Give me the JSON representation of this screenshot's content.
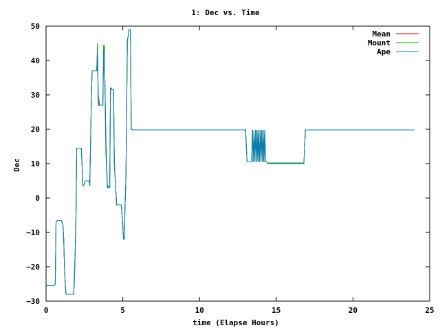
{
  "chart_data": {
    "type": "line",
    "title": "1: Dec vs. Time",
    "xlabel": "time (Elapse Hours)",
    "ylabel": "Dec",
    "xlim": [
      0,
      25
    ],
    "ylim": [
      -30,
      50
    ],
    "xticks": [
      0,
      5,
      10,
      15,
      20,
      25
    ],
    "yticks": [
      -30,
      -20,
      -10,
      0,
      10,
      20,
      30,
      40,
      50
    ],
    "grid": false,
    "legend_position": "top-right",
    "series": [
      {
        "name": "Mean",
        "color": "#cc0000",
        "x": [
          0,
          0.5,
          0.6,
          0.65,
          0.75,
          1.0,
          1.1,
          1.15,
          1.2,
          1.25,
          1.3,
          1.35,
          1.45,
          1.8,
          1.85,
          1.9,
          1.95,
          2.0,
          2.05,
          2.1,
          2.3,
          2.35,
          2.4,
          2.5,
          2.55,
          2.8,
          2.85,
          2.95,
          3.0,
          3.05,
          3.1,
          3.15,
          3.3,
          3.35,
          3.4,
          3.5,
          3.55,
          3.7,
          3.75,
          3.8,
          3.85,
          3.9,
          4.0,
          4.05,
          4.1,
          4.15,
          4.2,
          4.25,
          4.3,
          4.35,
          4.4,
          4.45,
          4.6,
          4.65,
          4.7,
          4.9,
          5.0,
          5.05,
          5.1,
          5.15,
          5.2,
          5.3,
          5.35,
          5.4,
          5.5,
          5.55,
          5.65,
          5.8,
          13.0,
          13.05,
          13.1,
          13.15,
          13.4,
          13.45,
          13.5,
          13.55,
          13.6,
          13.65,
          13.7,
          13.75,
          13.8,
          13.85,
          13.9,
          13.95,
          14.0,
          14.05,
          14.1,
          14.15,
          14.2,
          14.25,
          14.3,
          14.4,
          14.45,
          14.5,
          14.6,
          16.8,
          16.85,
          16.9,
          17.0,
          24.0
        ],
        "y": [
          -25.5,
          -25.5,
          -25,
          -7,
          -6.5,
          -6.5,
          -8,
          -12,
          -20,
          -25,
          -28,
          -28,
          -28,
          -28,
          -22,
          -15,
          -5,
          14.5,
          14.5,
          14.5,
          14.5,
          9,
          3.5,
          4,
          5,
          5,
          3.5,
          28,
          37,
          37,
          37,
          37,
          37,
          44,
          27,
          27,
          27,
          27,
          43,
          44,
          30,
          15,
          3,
          3,
          3,
          3,
          32,
          32,
          31.5,
          31.5,
          31.5,
          10,
          -2,
          -2,
          -2,
          -2,
          -8,
          -12,
          -12,
          -2,
          5,
          46,
          47,
          49,
          49,
          20,
          19.8,
          19.8,
          19.8,
          15,
          10.5,
          10.5,
          10.5,
          19.8,
          10.5,
          19.5,
          10.5,
          19.8,
          10.5,
          19.8,
          10.5,
          19.8,
          10.5,
          19.8,
          10.5,
          19.8,
          10.5,
          19.8,
          10.5,
          19.8,
          10.5,
          10.5,
          10.2,
          10.2,
          10.2,
          10.2,
          15,
          19.8,
          19.8,
          19.8
        ]
      },
      {
        "name": "Mount",
        "color": "#00a000",
        "x": [
          0,
          0.5,
          0.6,
          0.65,
          0.75,
          1.0,
          1.1,
          1.15,
          1.2,
          1.25,
          1.3,
          1.35,
          1.45,
          1.8,
          1.85,
          1.9,
          1.95,
          2.0,
          2.05,
          2.1,
          2.3,
          2.35,
          2.4,
          2.5,
          2.55,
          2.8,
          2.85,
          2.95,
          3.0,
          3.05,
          3.1,
          3.15,
          3.3,
          3.35,
          3.4,
          3.5,
          3.55,
          3.7,
          3.75,
          3.8,
          3.85,
          3.9,
          4.0,
          4.05,
          4.1,
          4.15,
          4.2,
          4.25,
          4.3,
          4.35,
          4.4,
          4.45,
          4.6,
          4.65,
          4.7,
          4.9,
          5.0,
          5.05,
          5.1,
          5.15,
          5.2,
          5.3,
          5.35,
          5.4,
          5.5,
          5.55,
          5.65,
          5.8,
          13.0,
          13.05,
          13.1,
          13.15,
          13.4,
          13.45,
          13.5,
          13.55,
          13.6,
          13.65,
          13.7,
          13.75,
          13.8,
          13.85,
          13.9,
          13.95,
          14.0,
          14.05,
          14.1,
          14.15,
          14.2,
          14.25,
          14.3,
          14.4,
          14.45,
          14.5,
          14.6,
          16.8,
          16.85,
          16.9,
          17.0,
          24.0
        ],
        "y": [
          -25.5,
          -25.5,
          -25,
          -7,
          -6.5,
          -6.5,
          -8,
          -12,
          -20,
          -25,
          -28,
          -28,
          -28,
          -28,
          -24,
          -15,
          -8,
          14.5,
          14.5,
          14.5,
          14.5,
          9,
          3.5,
          4,
          5,
          5,
          3.5,
          28,
          37,
          37,
          37,
          37,
          37,
          45,
          28,
          27,
          27,
          27,
          44.5,
          44.5,
          30,
          13,
          3,
          3,
          3,
          3,
          32,
          32,
          31.5,
          31.5,
          31.5,
          10,
          -2,
          -2,
          -2,
          -2,
          -8,
          -12,
          -12,
          -2,
          5,
          46,
          47,
          49,
          49,
          20,
          19.8,
          19.8,
          19.8,
          15,
          10.5,
          10.5,
          10.5,
          19.8,
          10.5,
          19.5,
          10.5,
          19.8,
          10.5,
          19.8,
          10.5,
          19.8,
          10.5,
          19.8,
          10.5,
          19.8,
          10.5,
          19.8,
          10.5,
          19.8,
          10.5,
          10.5,
          10.2,
          10.2,
          10.2,
          10.2,
          15,
          19.8,
          19.8,
          19.8
        ]
      },
      {
        "name": "Ape",
        "color": "#0080c0",
        "x": [
          0,
          0.5,
          0.6,
          0.65,
          0.75,
          1.0,
          1.1,
          1.15,
          1.2,
          1.25,
          1.3,
          1.35,
          1.45,
          1.8,
          1.85,
          1.9,
          1.95,
          2.0,
          2.05,
          2.1,
          2.3,
          2.35,
          2.4,
          2.5,
          2.55,
          2.8,
          2.85,
          2.95,
          3.0,
          3.05,
          3.1,
          3.15,
          3.3,
          3.35,
          3.4,
          3.5,
          3.55,
          3.7,
          3.75,
          3.8,
          3.85,
          3.9,
          4.0,
          4.05,
          4.1,
          4.15,
          4.2,
          4.25,
          4.3,
          4.35,
          4.4,
          4.45,
          4.6,
          4.65,
          4.7,
          4.9,
          5.0,
          5.05,
          5.1,
          5.15,
          5.2,
          5.3,
          5.35,
          5.4,
          5.5,
          5.55,
          5.65,
          5.8,
          13.0,
          13.05,
          13.1,
          13.15,
          13.4,
          13.45,
          13.5,
          13.55,
          13.6,
          13.65,
          13.7,
          13.75,
          13.8,
          13.85,
          13.9,
          13.95,
          14.0,
          14.05,
          14.1,
          14.15,
          14.2,
          14.25,
          14.3,
          14.4,
          14.45,
          14.5,
          14.6,
          16.8,
          16.85,
          16.9,
          17.0,
          24.0
        ],
        "y": [
          -25.5,
          -25.5,
          -25,
          -7,
          -6.5,
          -6.5,
          -8,
          -12,
          -20,
          -25,
          -28,
          -28,
          -28,
          -28,
          -22,
          -15,
          -5,
          14.5,
          14.5,
          14.5,
          14.5,
          9,
          3.5,
          4,
          5,
          5,
          3.5,
          28,
          37,
          37,
          37,
          37,
          37,
          43,
          30,
          27,
          27,
          27,
          42,
          43,
          30,
          18,
          3,
          3.5,
          3,
          3,
          32,
          32,
          31.5,
          31.5,
          31.5,
          10,
          -2,
          -2,
          -2,
          -2,
          -8,
          -12,
          -12,
          -2,
          5,
          46,
          47,
          49,
          49,
          20,
          19.8,
          19.8,
          19.8,
          15,
          10.5,
          10.5,
          10.5,
          19.8,
          10.5,
          19.5,
          10.5,
          19.8,
          10.5,
          19.8,
          10.5,
          19.8,
          10.5,
          19.8,
          10.5,
          19.8,
          10.5,
          19.8,
          10.5,
          19.8,
          10.5,
          10.5,
          10,
          10,
          10,
          10,
          15,
          19.8,
          19.8,
          19.8
        ]
      }
    ]
  }
}
